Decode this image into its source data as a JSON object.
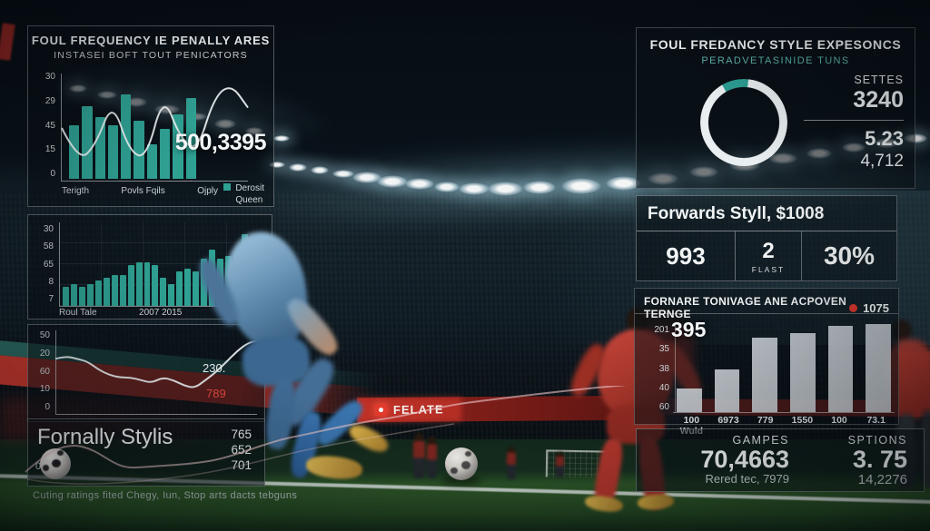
{
  "scene": {
    "board_text": "FELATE"
  },
  "accent": {
    "teal": "#2fa193",
    "red": "#d8362b",
    "white": "#f5f8f9",
    "gray_bar": "#ced5db"
  },
  "left": {
    "foul_panel": {
      "title": "FOUL FREQUENCY IE PENALLY ARES",
      "subtitle": "INSTASEI BOFT TOUT PENICATORS",
      "big_value": "500,3395",
      "y_ticks": [
        "30",
        "29",
        "45",
        "15",
        "0"
      ],
      "x_ticks": [
        "Terigth",
        "Povls Fqils",
        "Ojply"
      ],
      "legend_line1": "Derosit",
      "legend_line2": "Queen"
    },
    "bar_panel": {
      "y_ticks": [
        "30",
        "58",
        "65",
        "8",
        "7"
      ],
      "x_ticks": [
        "Roul Tale",
        "2007 2015",
        "201e Tims"
      ]
    },
    "line_panel": {
      "y_ticks": [
        "50",
        "20",
        "60",
        "10",
        "0"
      ],
      "label_white": "230.",
      "label_red": "789"
    },
    "style_panel": {
      "title": "Fornally Stylis",
      "zero_label": "0",
      "values": [
        "765",
        "652",
        "701"
      ]
    },
    "caption": "Cuting ratings fited Chegy, Iun, Stop arts dacts tebguns"
  },
  "right": {
    "expesoncs": {
      "title": "FOUL FREDANCY STYLE EXPESONCS",
      "subtitle": "PERADVETASINIDE TUNS",
      "stat_label": "SETTES",
      "stat_value": "3240",
      "stat2": "5.23",
      "stat3": "4,712"
    },
    "forwards": {
      "title": "Forwards Styll, $1008",
      "cell1": "993",
      "cell2": "2",
      "cell2_sub": "FLAST",
      "cell3": "30%"
    },
    "tonivage": {
      "title": "FORNARE TONIVAGE ANE ACPOVEN TERNGE",
      "legend_value": "1075",
      "overlay_value": "395",
      "y_ticks": [
        "201",
        "35",
        "38",
        "40",
        "60"
      ],
      "x_ticks": [
        "100 Wuld",
        "6973",
        "779",
        "1550",
        "100",
        "73.1"
      ]
    },
    "stats": {
      "left_label": "GAMPES",
      "left_value": "70,4663",
      "left_sub": "Rered tec, 7979",
      "right_label": "SPTIONS",
      "right_value": "3. 75",
      "right_sub": "14,2276"
    }
  },
  "chart_data": [
    {
      "id": "tl-bars",
      "type": "bar",
      "title": "FOUL FREQUENCY IE PENALLY ARES",
      "categories": [
        "Terigth",
        "Povls Fqils",
        "Ojply"
      ],
      "legend": [
        "Derosit",
        "Queen"
      ],
      "ymax": 26,
      "yticklabels": [
        "30",
        "29",
        "45",
        "15",
        "0"
      ],
      "big_label": "500,3395",
      "values": [
        14,
        19,
        16,
        14,
        22,
        15,
        9,
        13,
        17,
        21
      ]
    },
    {
      "id": "tl-line",
      "type": "line",
      "title": "trend overlay on foul frequency chart",
      "ymax": 30,
      "values": [
        15,
        5,
        10,
        23,
        8,
        6,
        25,
        12,
        8,
        24,
        28,
        21
      ]
    },
    {
      "id": "lm-bars",
      "type": "bar",
      "title": "left season bar chart",
      "categories": [
        "Roul Tale",
        "2007 2015",
        "201e Tims"
      ],
      "yticklabels": [
        "30",
        "58",
        "65",
        "8",
        "7"
      ],
      "ymax": 25,
      "values": [
        6,
        7,
        6,
        7,
        8,
        9,
        10,
        10,
        13,
        14,
        14,
        13,
        9,
        7,
        11,
        12,
        11,
        15,
        18,
        15,
        16,
        13,
        23,
        19,
        15
      ]
    },
    {
      "id": "ll-line",
      "type": "line",
      "title": "left trend line chart",
      "yticklabels": [
        "50",
        "20",
        "60",
        "10",
        "0"
      ],
      "annotations": [
        "230.",
        "789"
      ],
      "ymax": 30,
      "values": [
        20,
        21,
        20,
        19,
        16,
        14,
        13,
        13,
        12,
        11,
        13,
        12,
        10,
        9,
        12,
        15,
        19,
        23,
        26,
        27
      ]
    },
    {
      "id": "style-values",
      "type": "table",
      "title": "Fornally Stylis",
      "values": [
        765,
        652,
        701
      ]
    },
    {
      "id": "donut",
      "type": "pie",
      "title": "FOUL FREDANCY STYLE EXPESONCS",
      "start_deg": -30,
      "slices": [
        {
          "label": "highlight",
          "value": 10,
          "color": "#2d9e93"
        },
        {
          "label": "base",
          "value": 90,
          "color": "#e9eef0"
        }
      ],
      "side_stats": {
        "SETTES": "3240",
        "mid": "5.23",
        "low": "4,712"
      }
    },
    {
      "id": "rb-bars",
      "type": "bar",
      "title": "FORNARE TONIVAGE ANE ACPOVEN TERNGE",
      "categories": [
        "100 Wuld",
        "6973",
        "779",
        "1550",
        "100",
        "73.1"
      ],
      "legend": [
        {
          "label": "1075",
          "color": "#d8362b"
        }
      ],
      "overlay": "395",
      "yticklabels": [
        "201",
        "35",
        "38",
        "40",
        "60"
      ],
      "ymax": 85,
      "values": [
        21,
        38,
        67,
        71,
        77,
        79
      ]
    },
    {
      "id": "summary",
      "type": "table",
      "cells": [
        [
          "GAMPES",
          "70,4663",
          "Rered tec, 7979"
        ],
        [
          "SPTIONS",
          "3. 75",
          "14,2276"
        ]
      ]
    }
  ]
}
